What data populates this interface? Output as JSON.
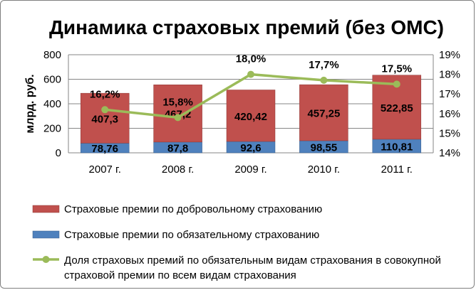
{
  "chart_data": {
    "type": "bar",
    "stacked": true,
    "title": "Динамика страховых премий (без ОМС)",
    "ylabel": "млрд. руб.",
    "categories": [
      "2007 г.",
      "2008 г.",
      "2009 г.",
      "2010 г.",
      "2011 г."
    ],
    "ylim": [
      0,
      800
    ],
    "yticks": [
      0,
      200,
      400,
      600,
      800
    ],
    "y2lim": [
      14,
      19
    ],
    "y2ticks": [
      "14%",
      "15%",
      "16%",
      "17%",
      "18%",
      "19%"
    ],
    "grid": true,
    "legend_position": "bottom",
    "series": [
      {
        "name": "Страховые премии по обязательному страхованию",
        "type": "bar",
        "color": "#4f81bd",
        "values": [
          78.76,
          87.8,
          92.6,
          98.55,
          110.81
        ],
        "labels": [
          "78,76",
          "87,8",
          "92,6",
          "98,55",
          "110,81"
        ]
      },
      {
        "name": "Страховые премии по добровольному страхованию",
        "type": "bar",
        "color": "#c0504d",
        "values": [
          407.3,
          467.2,
          420.42,
          457.25,
          522.85
        ],
        "labels": [
          "407,3",
          "467,2",
          "420,42",
          "457,25",
          "522,85"
        ]
      },
      {
        "name": "Доля страховых премий по обязательным видам страхования в совокупной страховой премии по всем видам страхования",
        "type": "line",
        "axis": "secondary",
        "color": "#9bbb59",
        "values": [
          16.2,
          15.8,
          18.0,
          17.7,
          17.5
        ],
        "labels": [
          "16,2%",
          "15,8%",
          "18,0%",
          "17,7%",
          "17,5%"
        ]
      }
    ],
    "legend": [
      {
        "text": "Страховые премии по добровольному страхованию",
        "color": "#c0504d",
        "kind": "box"
      },
      {
        "text": "Страховые премии по обязательному страхованию",
        "color": "#4f81bd",
        "kind": "box"
      },
      {
        "text_lines": [
          "Доля страховых премий по обязательным видам страхования в совокупной",
          "страховой премии по всем видам страхования"
        ],
        "color": "#9bbb59",
        "kind": "line"
      }
    ]
  }
}
